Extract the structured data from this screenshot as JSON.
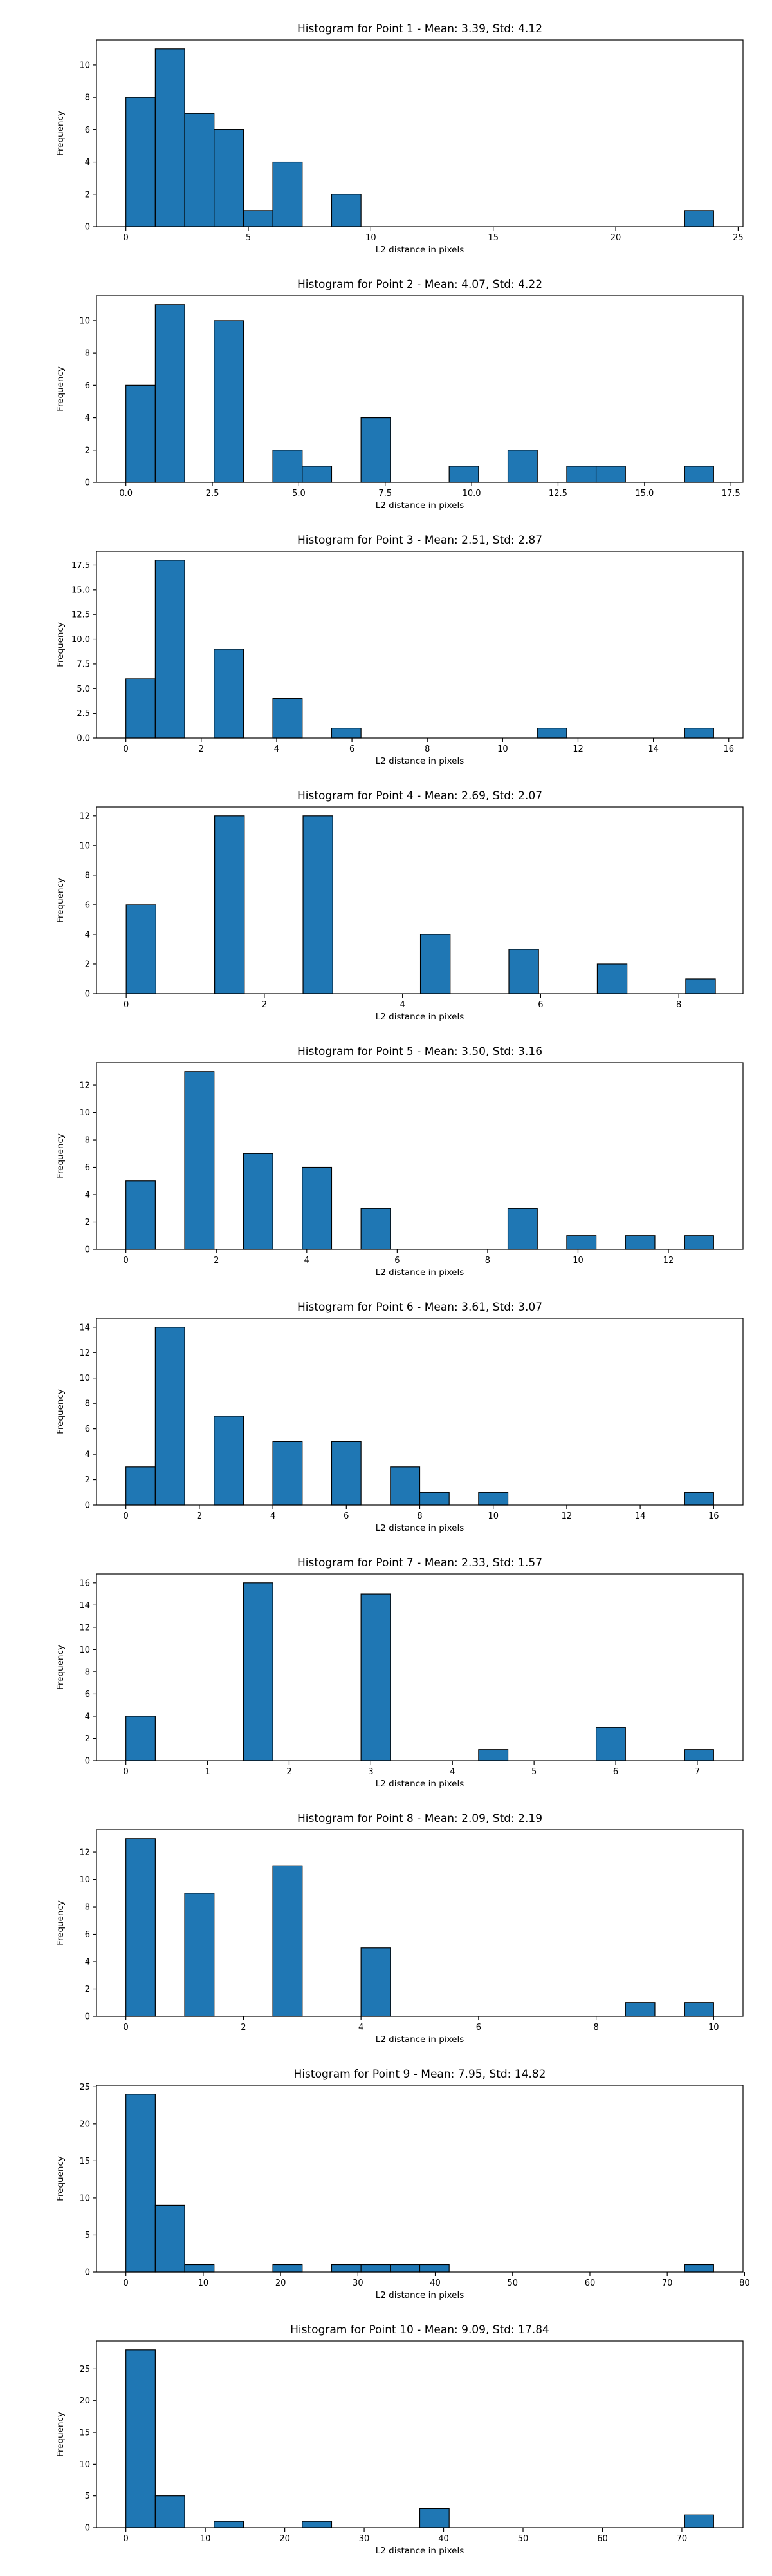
{
  "chart_data": [
    {
      "type": "bar",
      "title": "Histogram for Point 1 - Mean: 3.39, Std: 4.12",
      "xlabel": "L2 distance in pixels",
      "ylabel": "Frequency",
      "xlim": [
        -1.2,
        25.2
      ],
      "ylim": [
        0,
        11.55
      ],
      "xticks": [
        0,
        5,
        10,
        15,
        20,
        25
      ],
      "xtick_labels": [
        "0",
        "5",
        "10",
        "15",
        "20",
        "25"
      ],
      "yticks": [
        0,
        2,
        4,
        6,
        8,
        10
      ],
      "ytick_labels": [
        "0",
        "2",
        "4",
        "6",
        "8",
        "10"
      ],
      "bars": [
        {
          "x0": 0.0,
          "x1": 1.2,
          "value": 8
        },
        {
          "x0": 1.2,
          "x1": 2.4,
          "value": 11
        },
        {
          "x0": 2.4,
          "x1": 3.6,
          "value": 7
        },
        {
          "x0": 3.6,
          "x1": 4.8,
          "value": 6
        },
        {
          "x0": 4.8,
          "x1": 6.0,
          "value": 1
        },
        {
          "x0": 6.0,
          "x1": 7.2,
          "value": 4
        },
        {
          "x0": 8.4,
          "x1": 9.6,
          "value": 2
        },
        {
          "x0": 22.8,
          "x1": 24.0,
          "value": 1
        }
      ]
    },
    {
      "type": "bar",
      "title": "Histogram for Point 2 - Mean: 4.07, Std: 4.22",
      "xlabel": "L2 distance in pixels",
      "ylabel": "Frequency",
      "xlim": [
        -0.85,
        17.85
      ],
      "ylim": [
        0,
        11.55
      ],
      "xticks": [
        0,
        2.5,
        5,
        7.5,
        10,
        12.5,
        15,
        17.5
      ],
      "xtick_labels": [
        "0.0",
        "2.5",
        "5.0",
        "7.5",
        "10.0",
        "12.5",
        "15.0",
        "17.5"
      ],
      "yticks": [
        0,
        2,
        4,
        6,
        8,
        10
      ],
      "ytick_labels": [
        "0",
        "2",
        "4",
        "6",
        "8",
        "10"
      ],
      "bars": [
        {
          "x0": 0.0,
          "x1": 0.85,
          "value": 6
        },
        {
          "x0": 0.85,
          "x1": 1.7,
          "value": 11
        },
        {
          "x0": 2.55,
          "x1": 3.4,
          "value": 10
        },
        {
          "x0": 4.25,
          "x1": 5.1,
          "value": 2
        },
        {
          "x0": 5.1,
          "x1": 5.95,
          "value": 1
        },
        {
          "x0": 6.8,
          "x1": 7.65,
          "value": 4
        },
        {
          "x0": 9.35,
          "x1": 10.2,
          "value": 1
        },
        {
          "x0": 11.05,
          "x1": 11.9,
          "value": 2
        },
        {
          "x0": 12.75,
          "x1": 13.6,
          "value": 1
        },
        {
          "x0": 13.6,
          "x1": 14.45,
          "value": 1
        },
        {
          "x0": 16.15,
          "x1": 17.0,
          "value": 1
        }
      ]
    },
    {
      "type": "bar",
      "title": "Histogram for Point 3 - Mean: 2.51, Std: 2.87",
      "xlabel": "L2 distance in pixels",
      "ylabel": "Frequency",
      "xlim": [
        -0.78,
        16.38
      ],
      "ylim": [
        0,
        18.9
      ],
      "xticks": [
        0,
        2,
        4,
        6,
        8,
        10,
        12,
        14,
        16
      ],
      "xtick_labels": [
        "0",
        "2",
        "4",
        "6",
        "8",
        "10",
        "12",
        "14",
        "16"
      ],
      "yticks": [
        0,
        2.5,
        5,
        7.5,
        10,
        12.5,
        15,
        17.5
      ],
      "ytick_labels": [
        "0.0",
        "2.5",
        "5.0",
        "7.5",
        "10.0",
        "12.5",
        "15.0",
        "17.5"
      ],
      "bars": [
        {
          "x0": 0.0,
          "x1": 0.78,
          "value": 6
        },
        {
          "x0": 0.78,
          "x1": 1.56,
          "value": 18
        },
        {
          "x0": 2.34,
          "x1": 3.12,
          "value": 9
        },
        {
          "x0": 3.9,
          "x1": 4.68,
          "value": 4
        },
        {
          "x0": 5.46,
          "x1": 6.24,
          "value": 1
        },
        {
          "x0": 10.92,
          "x1": 11.7,
          "value": 1
        },
        {
          "x0": 14.82,
          "x1": 15.6,
          "value": 1
        }
      ]
    },
    {
      "type": "bar",
      "title": "Histogram for Point 4 - Mean: 2.69, Std: 2.07",
      "xlabel": "L2 distance in pixels",
      "ylabel": "Frequency",
      "xlim": [
        -0.43,
        8.93
      ],
      "ylim": [
        0,
        12.6
      ],
      "xticks": [
        0,
        2,
        4,
        6,
        8
      ],
      "xtick_labels": [
        "0",
        "2",
        "4",
        "6",
        "8"
      ],
      "yticks": [
        0,
        2,
        4,
        6,
        8,
        10,
        12
      ],
      "ytick_labels": [
        "0",
        "2",
        "4",
        "6",
        "8",
        "10",
        "12"
      ],
      "bars": [
        {
          "x0": 0.0,
          "x1": 0.43,
          "value": 6
        },
        {
          "x0": 1.28,
          "x1": 1.71,
          "value": 12
        },
        {
          "x0": 2.56,
          "x1": 2.99,
          "value": 12
        },
        {
          "x0": 4.26,
          "x1": 4.69,
          "value": 4
        },
        {
          "x0": 5.54,
          "x1": 5.97,
          "value": 3
        },
        {
          "x0": 6.82,
          "x1": 7.25,
          "value": 2
        },
        {
          "x0": 8.1,
          "x1": 8.53,
          "value": 1
        }
      ]
    },
    {
      "type": "bar",
      "title": "Histogram for Point 5 - Mean: 3.50, Std: 3.16",
      "xlabel": "L2 distance in pixels",
      "ylabel": "Frequency",
      "xlim": [
        -0.65,
        13.65
      ],
      "ylim": [
        0,
        13.65
      ],
      "xticks": [
        0,
        2,
        4,
        6,
        8,
        10,
        12
      ],
      "xtick_labels": [
        "0",
        "2",
        "4",
        "6",
        "8",
        "10",
        "12"
      ],
      "yticks": [
        0,
        2,
        4,
        6,
        8,
        10,
        12
      ],
      "ytick_labels": [
        "0",
        "2",
        "4",
        "6",
        "8",
        "10",
        "12"
      ],
      "bars": [
        {
          "x0": 0.0,
          "x1": 0.65,
          "value": 5
        },
        {
          "x0": 1.3,
          "x1": 1.95,
          "value": 13
        },
        {
          "x0": 2.6,
          "x1": 3.25,
          "value": 7
        },
        {
          "x0": 3.9,
          "x1": 4.55,
          "value": 6
        },
        {
          "x0": 5.2,
          "x1": 5.85,
          "value": 3
        },
        {
          "x0": 8.45,
          "x1": 9.1,
          "value": 3
        },
        {
          "x0": 9.75,
          "x1": 10.4,
          "value": 1
        },
        {
          "x0": 11.05,
          "x1": 11.7,
          "value": 1
        },
        {
          "x0": 12.35,
          "x1": 13.0,
          "value": 1
        }
      ]
    },
    {
      "type": "bar",
      "title": "Histogram for Point 6 - Mean: 3.61, Std: 3.07",
      "xlabel": "L2 distance in pixels",
      "ylabel": "Frequency",
      "xlim": [
        -0.8,
        16.8
      ],
      "ylim": [
        0,
        14.7
      ],
      "xticks": [
        0,
        2,
        4,
        6,
        8,
        10,
        12,
        14,
        16
      ],
      "xtick_labels": [
        "0",
        "2",
        "4",
        "6",
        "8",
        "10",
        "12",
        "14",
        "16"
      ],
      "yticks": [
        0,
        2,
        4,
        6,
        8,
        10,
        12,
        14
      ],
      "ytick_labels": [
        "0",
        "2",
        "4",
        "6",
        "8",
        "10",
        "12",
        "14"
      ],
      "bars": [
        {
          "x0": 0.0,
          "x1": 0.8,
          "value": 3
        },
        {
          "x0": 0.8,
          "x1": 1.6,
          "value": 14
        },
        {
          "x0": 2.4,
          "x1": 3.2,
          "value": 7
        },
        {
          "x0": 4.0,
          "x1": 4.8,
          "value": 5
        },
        {
          "x0": 5.6,
          "x1": 6.4,
          "value": 5
        },
        {
          "x0": 7.2,
          "x1": 8.0,
          "value": 3
        },
        {
          "x0": 8.0,
          "x1": 8.8,
          "value": 1
        },
        {
          "x0": 9.6,
          "x1": 10.4,
          "value": 1
        },
        {
          "x0": 15.2,
          "x1": 16.0,
          "value": 1
        }
      ]
    },
    {
      "type": "bar",
      "title": "Histogram for Point 7 - Mean: 2.33, Std: 1.57",
      "xlabel": "L2 distance in pixels",
      "ylabel": "Frequency",
      "xlim": [
        -0.36,
        7.56
      ],
      "ylim": [
        0,
        16.8
      ],
      "xticks": [
        0,
        1,
        2,
        3,
        4,
        5,
        6,
        7
      ],
      "xtick_labels": [
        "0",
        "1",
        "2",
        "3",
        "4",
        "5",
        "6",
        "7"
      ],
      "yticks": [
        0,
        2,
        4,
        6,
        8,
        10,
        12,
        14,
        16
      ],
      "ytick_labels": [
        "0",
        "2",
        "4",
        "6",
        "8",
        "10",
        "12",
        "14",
        "16"
      ],
      "bars": [
        {
          "x0": 0.0,
          "x1": 0.36,
          "value": 4
        },
        {
          "x0": 1.44,
          "x1": 1.8,
          "value": 16
        },
        {
          "x0": 2.88,
          "x1": 3.24,
          "value": 15
        },
        {
          "x0": 4.32,
          "x1": 4.68,
          "value": 1
        },
        {
          "x0": 5.76,
          "x1": 6.12,
          "value": 3
        },
        {
          "x0": 6.84,
          "x1": 7.2,
          "value": 1
        }
      ]
    },
    {
      "type": "bar",
      "title": "Histogram for Point 8 - Mean: 2.09, Std: 2.19",
      "xlabel": "L2 distance in pixels",
      "ylabel": "Frequency",
      "xlim": [
        -0.5,
        10.5
      ],
      "ylim": [
        0,
        13.65
      ],
      "xticks": [
        0,
        2,
        4,
        6,
        8,
        10
      ],
      "xtick_labels": [
        "0",
        "2",
        "4",
        "6",
        "8",
        "10"
      ],
      "yticks": [
        0,
        2,
        4,
        6,
        8,
        10,
        12
      ],
      "ytick_labels": [
        "0",
        "2",
        "4",
        "6",
        "8",
        "10",
        "12"
      ],
      "bars": [
        {
          "x0": 0.0,
          "x1": 0.5,
          "value": 13
        },
        {
          "x0": 1.0,
          "x1": 1.5,
          "value": 9
        },
        {
          "x0": 2.5,
          "x1": 3.0,
          "value": 11
        },
        {
          "x0": 4.0,
          "x1": 4.5,
          "value": 5
        },
        {
          "x0": 8.5,
          "x1": 9.0,
          "value": 1
        },
        {
          "x0": 9.5,
          "x1": 10.0,
          "value": 1
        }
      ]
    },
    {
      "type": "bar",
      "title": "Histogram for Point 9 - Mean: 7.95, Std: 14.82",
      "xlabel": "L2 distance in pixels",
      "ylabel": "Frequency",
      "xlim": [
        -3.8,
        79.8
      ],
      "ylim": [
        0,
        25.2
      ],
      "xticks": [
        0,
        10,
        20,
        30,
        40,
        50,
        60,
        70,
        80
      ],
      "xtick_labels": [
        "0",
        "10",
        "20",
        "30",
        "40",
        "50",
        "60",
        "70",
        "80"
      ],
      "yticks": [
        0,
        5,
        10,
        15,
        20,
        25
      ],
      "ytick_labels": [
        "0",
        "5",
        "10",
        "15",
        "20",
        "25"
      ],
      "bars": [
        {
          "x0": 0.0,
          "x1": 3.8,
          "value": 24
        },
        {
          "x0": 3.8,
          "x1": 7.6,
          "value": 9
        },
        {
          "x0": 7.6,
          "x1": 11.4,
          "value": 1
        },
        {
          "x0": 19.0,
          "x1": 22.8,
          "value": 1
        },
        {
          "x0": 26.6,
          "x1": 30.4,
          "value": 1
        },
        {
          "x0": 30.4,
          "x1": 34.2,
          "value": 1
        },
        {
          "x0": 34.2,
          "x1": 38.0,
          "value": 1
        },
        {
          "x0": 38.0,
          "x1": 41.8,
          "value": 1
        },
        {
          "x0": 72.2,
          "x1": 76.0,
          "value": 1
        }
      ]
    },
    {
      "type": "bar",
      "title": "Histogram for Point 10 - Mean: 9.09, Std: 17.84",
      "xlabel": "L2 distance in pixels",
      "ylabel": "Frequency",
      "xlim": [
        -3.7,
        77.7
      ],
      "ylim": [
        0,
        29.4
      ],
      "xticks": [
        0,
        10,
        20,
        30,
        40,
        50,
        60,
        70
      ],
      "xtick_labels": [
        "0",
        "10",
        "20",
        "30",
        "40",
        "50",
        "60",
        "70"
      ],
      "yticks": [
        0,
        5,
        10,
        15,
        20,
        25
      ],
      "ytick_labels": [
        "0",
        "5",
        "10",
        "15",
        "20",
        "25"
      ],
      "bars": [
        {
          "x0": 0.0,
          "x1": 3.7,
          "value": 28
        },
        {
          "x0": 3.7,
          "x1": 7.4,
          "value": 5
        },
        {
          "x0": 11.1,
          "x1": 14.8,
          "value": 1
        },
        {
          "x0": 22.2,
          "x1": 25.9,
          "value": 1
        },
        {
          "x0": 37.0,
          "x1": 40.7,
          "value": 3
        },
        {
          "x0": 70.3,
          "x1": 74.0,
          "value": 2
        }
      ]
    }
  ],
  "colors": {
    "bar_fill": "#1f77b4",
    "bar_edge": "#000000",
    "background": "#ffffff"
  }
}
